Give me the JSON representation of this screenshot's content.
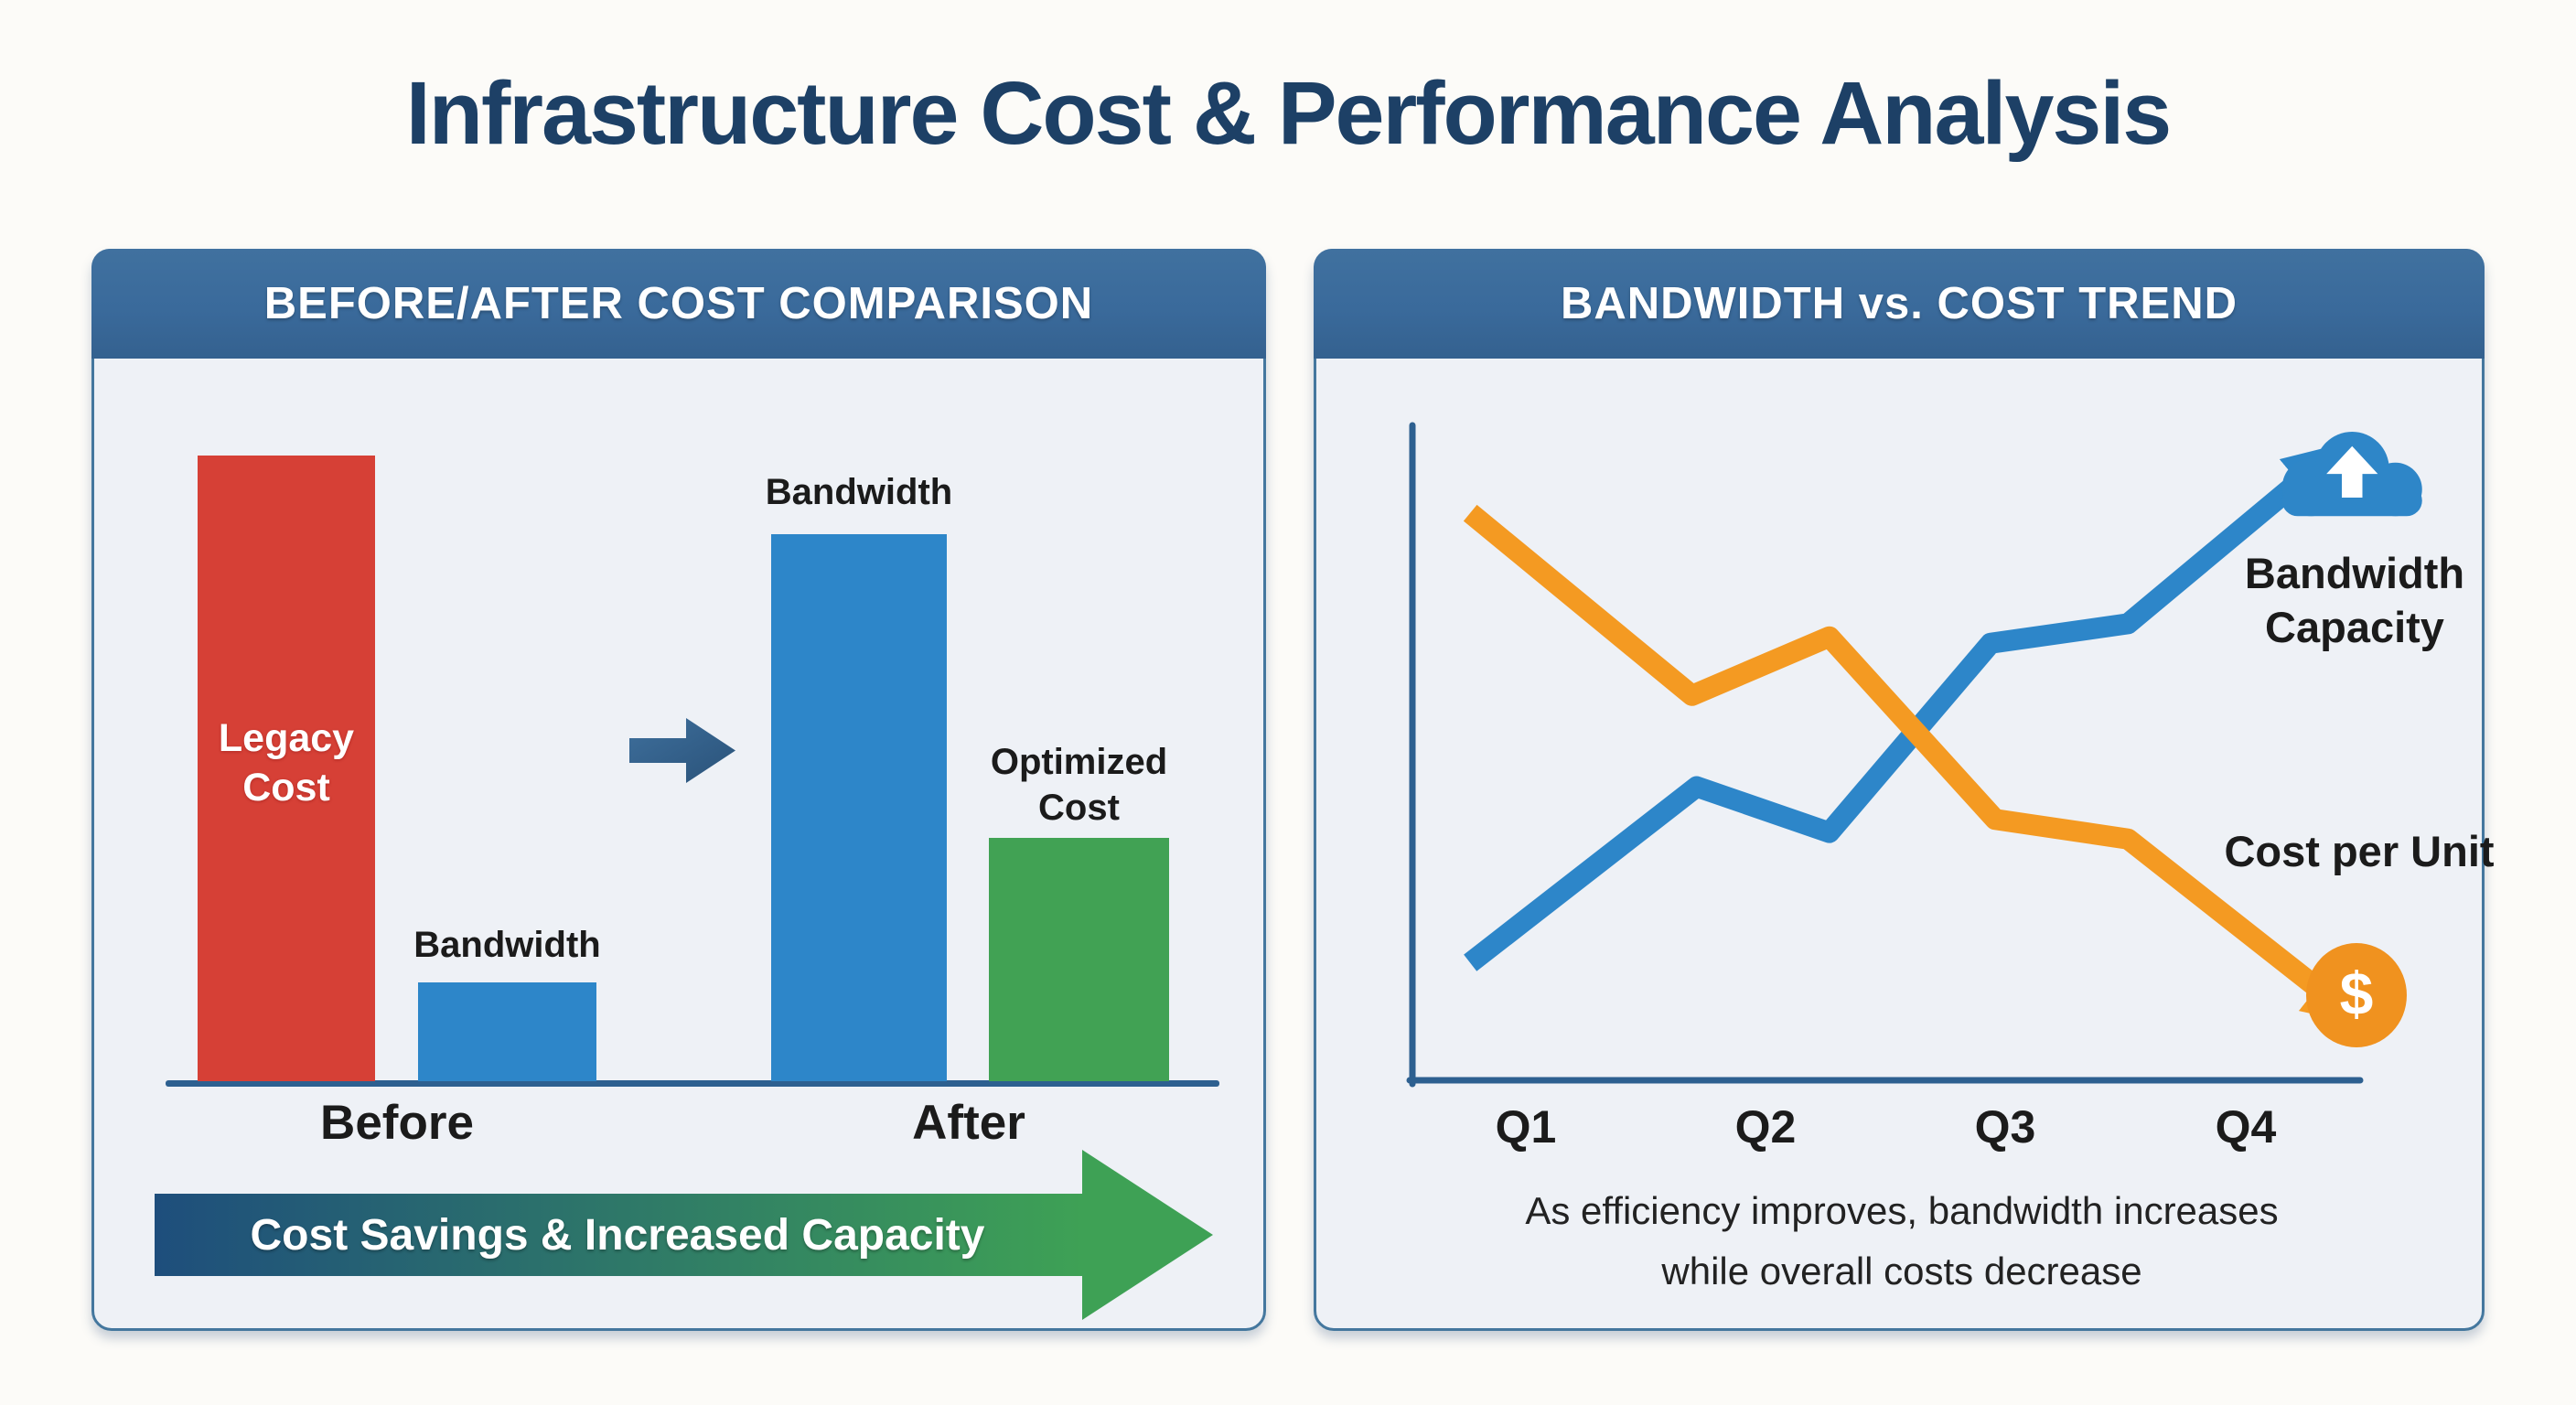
{
  "title": "Infrastructure Cost & Performance Analysis",
  "left_panel": {
    "header": "BEFORE/AFTER COST COMPARISON"
  },
  "right_panel": {
    "header": "BANDWIDTH vs. COST TREND",
    "caption_line1": "As efficiency improves, bandwidth increases",
    "caption_line2": "while overall costs decrease",
    "dollar_symbol": "$"
  },
  "colors": {
    "page_bg": "#fcfbf8",
    "panel_bg": "#eef1f6",
    "panel_border": "#44779e",
    "header_blue": "#3a6a9b",
    "navy": "#1d4066",
    "axis": "#2d6090",
    "red": "#d64036",
    "blue": "#2d86c9",
    "green": "#41a254",
    "orange": "#f49a22",
    "banner_start": "#1e4e7c",
    "banner_end": "#3ea155",
    "mid_arrow_light": "#3e6f9c",
    "mid_arrow_dark": "#2a5279",
    "cloud_blue": "#2e86c8",
    "coin": "#f0921f",
    "text_dark": "#1b1b1b",
    "caption": "#222222",
    "white": "#ffffff"
  },
  "chart_data": [
    {
      "type": "bar",
      "title": "BEFORE/AFTER COST COMPARISON",
      "ylabel": "",
      "ylim": [
        0,
        100
      ],
      "grid": false,
      "groups": [
        {
          "label": "Before",
          "bars": [
            {
              "name": "Legacy Cost",
              "value": 95,
              "color_key": "red"
            },
            {
              "name": "Bandwidth",
              "value": 15,
              "color_key": "blue"
            }
          ]
        },
        {
          "label": "After",
          "bars": [
            {
              "name": "Bandwidth",
              "value": 83,
              "color_key": "blue"
            },
            {
              "name": "Optimized Cost",
              "value": 37,
              "color_key": "green"
            }
          ]
        }
      ],
      "annotation": "Cost Savings & Increased Capacity"
    },
    {
      "type": "line",
      "title": "BANDWIDTH vs. COST TREND",
      "categories": [
        "Q1",
        "Q2",
        "Q3",
        "Q4"
      ],
      "xlabel": "",
      "ylabel": "",
      "ylim": [
        0,
        100
      ],
      "grid": false,
      "legend_position": "right",
      "series": [
        {
          "name": "Bandwidth Capacity",
          "color_key": "blue",
          "trend": "increasing",
          "x_frac": [
            0.061,
            0.3,
            0.44,
            0.61,
            0.755,
            0.945
          ],
          "values": [
            18,
            45,
            38,
            67,
            70,
            93
          ]
        },
        {
          "name": "Cost per Unit",
          "color_key": "orange",
          "trend": "decreasing",
          "x_frac": [
            0.061,
            0.295,
            0.44,
            0.615,
            0.755,
            0.965
          ],
          "values": [
            87,
            59,
            68,
            40,
            37,
            13
          ]
        }
      ],
      "caption": "As efficiency improves, bandwidth increases while overall costs decrease"
    }
  ]
}
